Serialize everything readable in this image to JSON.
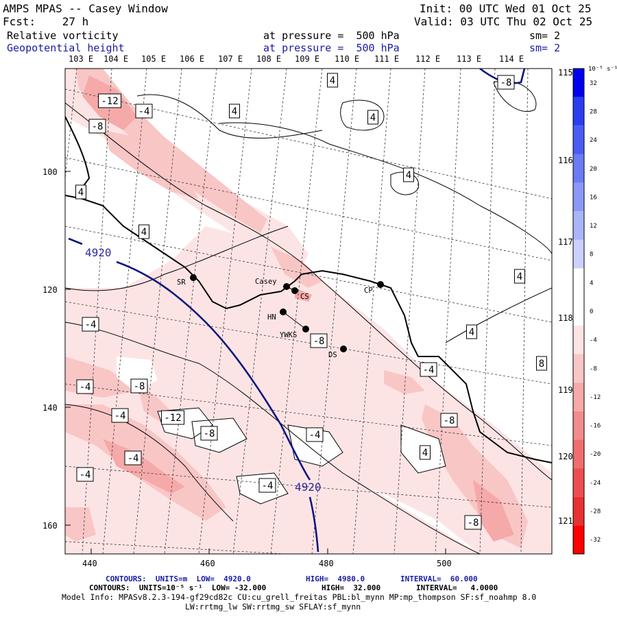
{
  "header": {
    "title": "AMPS MPAS -- Casey Window",
    "forecast": "Fcst:    27 h",
    "init": "Init: 00 UTC Wed 01 Oct 25",
    "valid": "Valid: 03 UTC Thu 02 Oct 25",
    "field1_name": "Relative vorticity",
    "field1_level": "at pressure =  500 hPa",
    "field1_sm": "sm= 2",
    "field2_name": "Geopotential height",
    "field2_level": "at pressure =  500 hPa",
    "field2_sm": "sm= 2"
  },
  "top_lon_labels": [
    "103 E",
    "104 E",
    "105 E",
    "106 E",
    "107 E",
    "108 E",
    "109 E",
    "110 E",
    "111 E",
    "112 E",
    "113 E",
    "114 E"
  ],
  "right_lon_labels": [
    "115 E",
    "116 E",
    "117 E",
    "118 E",
    "119 E",
    "120 E",
    "121 E"
  ],
  "x_ticks": [
    "440",
    "460",
    "480",
    "500"
  ],
  "y_ticks": [
    "100",
    "120",
    "140",
    "160"
  ],
  "stations": [
    {
      "label": "SR"
    },
    {
      "label": "Casey"
    },
    {
      "label": "CS"
    },
    {
      "label": "HN"
    },
    {
      "label": "YWKS"
    },
    {
      "label": "DS"
    },
    {
      "label": "CP"
    }
  ],
  "contour_labels_vort": [
    "-12",
    "-8",
    "-4",
    "4",
    "4",
    "4",
    "4",
    "4",
    "4",
    "4",
    "4",
    "-8",
    "-4",
    "-8",
    "-4",
    "-8",
    "-4",
    "-12",
    "-4",
    "-8",
    "-4",
    "-4",
    "-4",
    "-4",
    "-8",
    "-8",
    "8",
    "4"
  ],
  "contour_labels_height": [
    "4920",
    "4920"
  ],
  "colorbar": {
    "unit_label": "10⁻⁵ s⁻¹",
    "levels": [
      "32",
      "28",
      "24",
      "20",
      "16",
      "12",
      "8",
      "4",
      "0",
      "-4",
      "-8",
      "-12",
      "-16",
      "-20",
      "-24",
      "-28",
      "-32"
    ],
    "colors": [
      "#0000ee",
      "#2a3ef0",
      "#4b5cf2",
      "#6b7bf4",
      "#8b98f7",
      "#aab4f9",
      "#cbd1fc",
      "#ffffff",
      "#ffffff",
      "#fde4e4",
      "#f9c6c6",
      "#f6a9a9",
      "#f28b8b",
      "#ef6d6d",
      "#ec4f4f",
      "#e83131",
      "#ff0000"
    ]
  },
  "footer": {
    "line1_a": "CONTOURS:  UNITS=m  LOW=  4920.0",
    "line1_b": "HIGH=  4980.0",
    "line1_c": "INTERVAL=  60.000",
    "line2_a": "CONTOURS:  UNITS=10⁻⁵ s⁻¹  LOW= -32.000",
    "line2_b": "HIGH=  32.000",
    "line2_c": "INTERVAL=   4.0000",
    "line3": "Model Info: MPASv8.2.3-194-gf29cd82c CU:cu_grell_freitas PBL:bl_mynn MP:mp_thompson SF:sf_noahmp 8.0",
    "line4": "LW:rrtmg_lw SW:rrtmg_sw SFLAY:sf_mynn"
  }
}
